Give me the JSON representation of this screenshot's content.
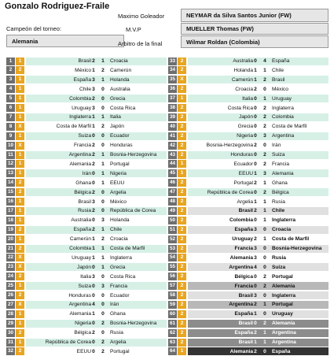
{
  "player_name": "Gonzalo Rodriguez-Fraile",
  "champion_label": "Campeón del torneo:",
  "champion_value": "Alemania",
  "top_scorer_label": "Maximo Goleador",
  "top_scorer_value": "NEYMAR da Silva Santos Junior (FW)",
  "mvp_label": "M.V.P",
  "mvp_value": "MUELLER Thomas (FW)",
  "referee_label": "Arbitro de la final",
  "referee_value": "Wilmar Roldan (Colombia)",
  "colors": {
    "number_box": "#6e6e6e",
    "marker_box": "#e8a520",
    "group_stripe": "#d6f0e6",
    "knockout_light": "#e0e0e0",
    "knockout_mid": "#b8b8b8",
    "final_dark": "#333333"
  },
  "matches": [
    {
      "n": "1",
      "mark": "1",
      "home": "Brasil",
      "hs": "2",
      "as": "1",
      "away": "Croacia"
    },
    {
      "n": "2",
      "mark": "2",
      "home": "México",
      "hs": "1",
      "as": "2",
      "away": "Camerún"
    },
    {
      "n": "3",
      "mark": "1",
      "home": "España",
      "hs": "3",
      "as": "1",
      "away": "Holanda"
    },
    {
      "n": "4",
      "mark": "1",
      "home": "Chile",
      "hs": "3",
      "as": "0",
      "away": "Australia"
    },
    {
      "n": "5",
      "mark": "1",
      "home": "Colombia",
      "hs": "2",
      "as": "0",
      "away": "Grecia"
    },
    {
      "n": "6",
      "mark": "1",
      "home": "Uruguay",
      "hs": "3",
      "as": "0",
      "away": "Costa Rica"
    },
    {
      "n": "7",
      "mark": "1",
      "home": "Inglaterra",
      "hs": "1",
      "as": "1",
      "away": "Italia"
    },
    {
      "n": "8",
      "mark": "X",
      "home": "Costa de Marfil",
      "hs": "1",
      "as": "2",
      "away": "Japón"
    },
    {
      "n": "9",
      "mark": "1",
      "home": "Suiza",
      "hs": "0",
      "as": "0",
      "away": "Ecuador"
    },
    {
      "n": "10",
      "mark": "X",
      "home": "Francia",
      "hs": "2",
      "as": "0",
      "away": "Honduras"
    },
    {
      "n": "11",
      "mark": "1",
      "home": "Argentina",
      "hs": "2",
      "as": "1",
      "away": "Bosnia-Herzegovina"
    },
    {
      "n": "12",
      "mark": "1",
      "home": "Alemania",
      "hs": "2",
      "as": "1",
      "away": "Portugal"
    },
    {
      "n": "13",
      "mark": "1",
      "home": "Irán",
      "hs": "0",
      "as": "1",
      "away": "Nigeria"
    },
    {
      "n": "14",
      "mark": "2",
      "home": "Ghana",
      "hs": "0",
      "as": "1",
      "away": "EEUU"
    },
    {
      "n": "15",
      "mark": "2",
      "home": "Bélgica",
      "hs": "2",
      "as": "0",
      "away": "Argelia"
    },
    {
      "n": "16",
      "mark": "1",
      "home": "Brasil",
      "hs": "3",
      "as": "0",
      "away": "México"
    },
    {
      "n": "17",
      "mark": "1",
      "home": "Rusia",
      "hs": "2",
      "as": "0",
      "away": "República de Corea"
    },
    {
      "n": "18",
      "mark": "1",
      "home": "Australia",
      "hs": "0",
      "as": "3",
      "away": "Holanda"
    },
    {
      "n": "19",
      "mark": "2",
      "home": "España",
      "hs": "2",
      "as": "1",
      "away": "Chile"
    },
    {
      "n": "20",
      "mark": "1",
      "home": "Camerún",
      "hs": "1",
      "as": "2",
      "away": "Croacia"
    },
    {
      "n": "21",
      "mark": "2",
      "home": "Colombia",
      "hs": "1",
      "as": "1",
      "away": "Costa de Marfil"
    },
    {
      "n": "22",
      "mark": "X",
      "home": "Uruguay",
      "hs": "1",
      "as": "1",
      "away": "Inglaterra"
    },
    {
      "n": "23",
      "mark": "X",
      "home": "Japón",
      "hs": "0",
      "as": "1",
      "away": "Grecia"
    },
    {
      "n": "24",
      "mark": "2",
      "home": "Italia",
      "hs": "3",
      "as": "0",
      "away": "Costa Rica"
    },
    {
      "n": "25",
      "mark": "1",
      "home": "Suiza",
      "hs": "0",
      "as": "3",
      "away": "Francia"
    },
    {
      "n": "26",
      "mark": "2",
      "home": "Honduras",
      "hs": "0",
      "as": "0",
      "away": "Ecuador"
    },
    {
      "n": "27",
      "mark": "X",
      "home": "Argentina",
      "hs": "4",
      "as": "0",
      "away": "Irán"
    },
    {
      "n": "28",
      "mark": "1",
      "home": "Alemania",
      "hs": "1",
      "as": "0",
      "away": "Ghana"
    },
    {
      "n": "29",
      "mark": "1",
      "home": "Nigeria",
      "hs": "0",
      "as": "2",
      "away": "Bosnia-Herzegovina"
    },
    {
      "n": "30",
      "mark": "2",
      "home": "Bélgica",
      "hs": "2",
      "as": "0",
      "away": "Rusia"
    },
    {
      "n": "31",
      "mark": "1",
      "home": "República de Corea",
      "hs": "0",
      "as": "2",
      "away": "Argelia"
    },
    {
      "n": "32",
      "mark": "2",
      "home": "EEUU",
      "hs": "0",
      "as": "2",
      "away": "Portugal"
    },
    {
      "n": "33",
      "mark": "2",
      "home": "Australia",
      "hs": "0",
      "as": "4",
      "away": "España"
    },
    {
      "n": "34",
      "mark": "2",
      "home": "Holanda",
      "hs": "1",
      "as": "1",
      "away": "Chile"
    },
    {
      "n": "35",
      "mark": "X",
      "home": "Camerún",
      "hs": "1",
      "as": "2",
      "away": "Brasil"
    },
    {
      "n": "36",
      "mark": "2",
      "home": "Croacia",
      "hs": "2",
      "as": "0",
      "away": "México"
    },
    {
      "n": "37",
      "mark": "1",
      "home": "Italia",
      "hs": "0",
      "as": "1",
      "away": "Uruguay"
    },
    {
      "n": "38",
      "mark": "2",
      "home": "Costa Rica",
      "hs": "0",
      "as": "2",
      "away": "Inglaterra"
    },
    {
      "n": "39",
      "mark": "2",
      "home": "Japón",
      "hs": "0",
      "as": "2",
      "away": "Colombia"
    },
    {
      "n": "40",
      "mark": "2",
      "home": "Grecia",
      "hs": "0",
      "as": "2",
      "away": "Costa de Marfil"
    },
    {
      "n": "41",
      "mark": "2",
      "home": "Nigeria",
      "hs": "0",
      "as": "3",
      "away": "Argentina"
    },
    {
      "n": "42",
      "mark": "2",
      "home": "Bosnia-Herzegovina",
      "hs": "2",
      "as": "0",
      "away": "Irán"
    },
    {
      "n": "43",
      "mark": "2",
      "home": "Honduras",
      "hs": "0",
      "as": "2",
      "away": "Suiza"
    },
    {
      "n": "44",
      "mark": "1",
      "home": "Ecuador",
      "hs": "0",
      "as": "2",
      "away": "Francia"
    },
    {
      "n": "45",
      "mark": "1",
      "home": "EEUU",
      "hs": "1",
      "as": "3",
      "away": "Alemania"
    },
    {
      "n": "46",
      "mark": "2",
      "home": "Portugal",
      "hs": "2",
      "as": "1",
      "away": "Ghana"
    },
    {
      "n": "47",
      "mark": "2",
      "home": "República de Corea",
      "hs": "0",
      "as": "2",
      "away": "Bélgica"
    },
    {
      "n": "48",
      "mark": "2",
      "home": "Argelia",
      "hs": "1",
      "as": "1",
      "away": "Rusia"
    },
    {
      "n": "49",
      "mark": "2",
      "home": "Brasil",
      "hs": "2",
      "as": "1",
      "away": "Chile"
    },
    {
      "n": "50",
      "mark": "2",
      "home": "Colombia",
      "hs": "0",
      "as": "1",
      "away": "Inglaterra"
    },
    {
      "n": "51",
      "mark": "2",
      "home": "España",
      "hs": "3",
      "as": "0",
      "away": "Croacia"
    },
    {
      "n": "52",
      "mark": "2",
      "home": "Uruguay",
      "hs": "2",
      "as": "1",
      "away": "Costa de Marfil"
    },
    {
      "n": "53",
      "mark": "2",
      "home": "Francia",
      "hs": "3",
      "as": "0",
      "away": "Bosnia-Herzegovina"
    },
    {
      "n": "54",
      "mark": "2",
      "home": "Alemania",
      "hs": "3",
      "as": "0",
      "away": "Rusia"
    },
    {
      "n": "55",
      "mark": "2",
      "home": "Argentina",
      "hs": "4",
      "as": "0",
      "away": "Suiza"
    },
    {
      "n": "56",
      "mark": "2",
      "home": "Bélgica",
      "hs": "0",
      "as": "2",
      "away": "Portugal"
    },
    {
      "n": "57",
      "mark": "2",
      "home": "Francia",
      "hs": "0",
      "as": "2",
      "away": "Alemania"
    },
    {
      "n": "58",
      "mark": "2",
      "home": "Brasil",
      "hs": "3",
      "as": "0",
      "away": "Inglaterra"
    },
    {
      "n": "59",
      "mark": "2",
      "home": "Argentina",
      "hs": "2",
      "as": "1",
      "away": "Portugal"
    },
    {
      "n": "60",
      "mark": "2",
      "home": "España",
      "hs": "1",
      "as": "0",
      "away": "Uruguay"
    },
    {
      "n": "61",
      "mark": "2",
      "home": "Brasil",
      "hs": "0",
      "as": "2",
      "away": "Alemania"
    },
    {
      "n": "62",
      "mark": "2",
      "home": "España",
      "hs": "2",
      "as": "1",
      "away": "Argentina"
    },
    {
      "n": "63",
      "mark": "2",
      "home": "Brasil",
      "hs": "1",
      "as": "1",
      "away": "Argentina"
    },
    {
      "n": "64",
      "mark": "1",
      "home": "Alemania",
      "hs": "2",
      "as": "0",
      "away": "España"
    }
  ]
}
